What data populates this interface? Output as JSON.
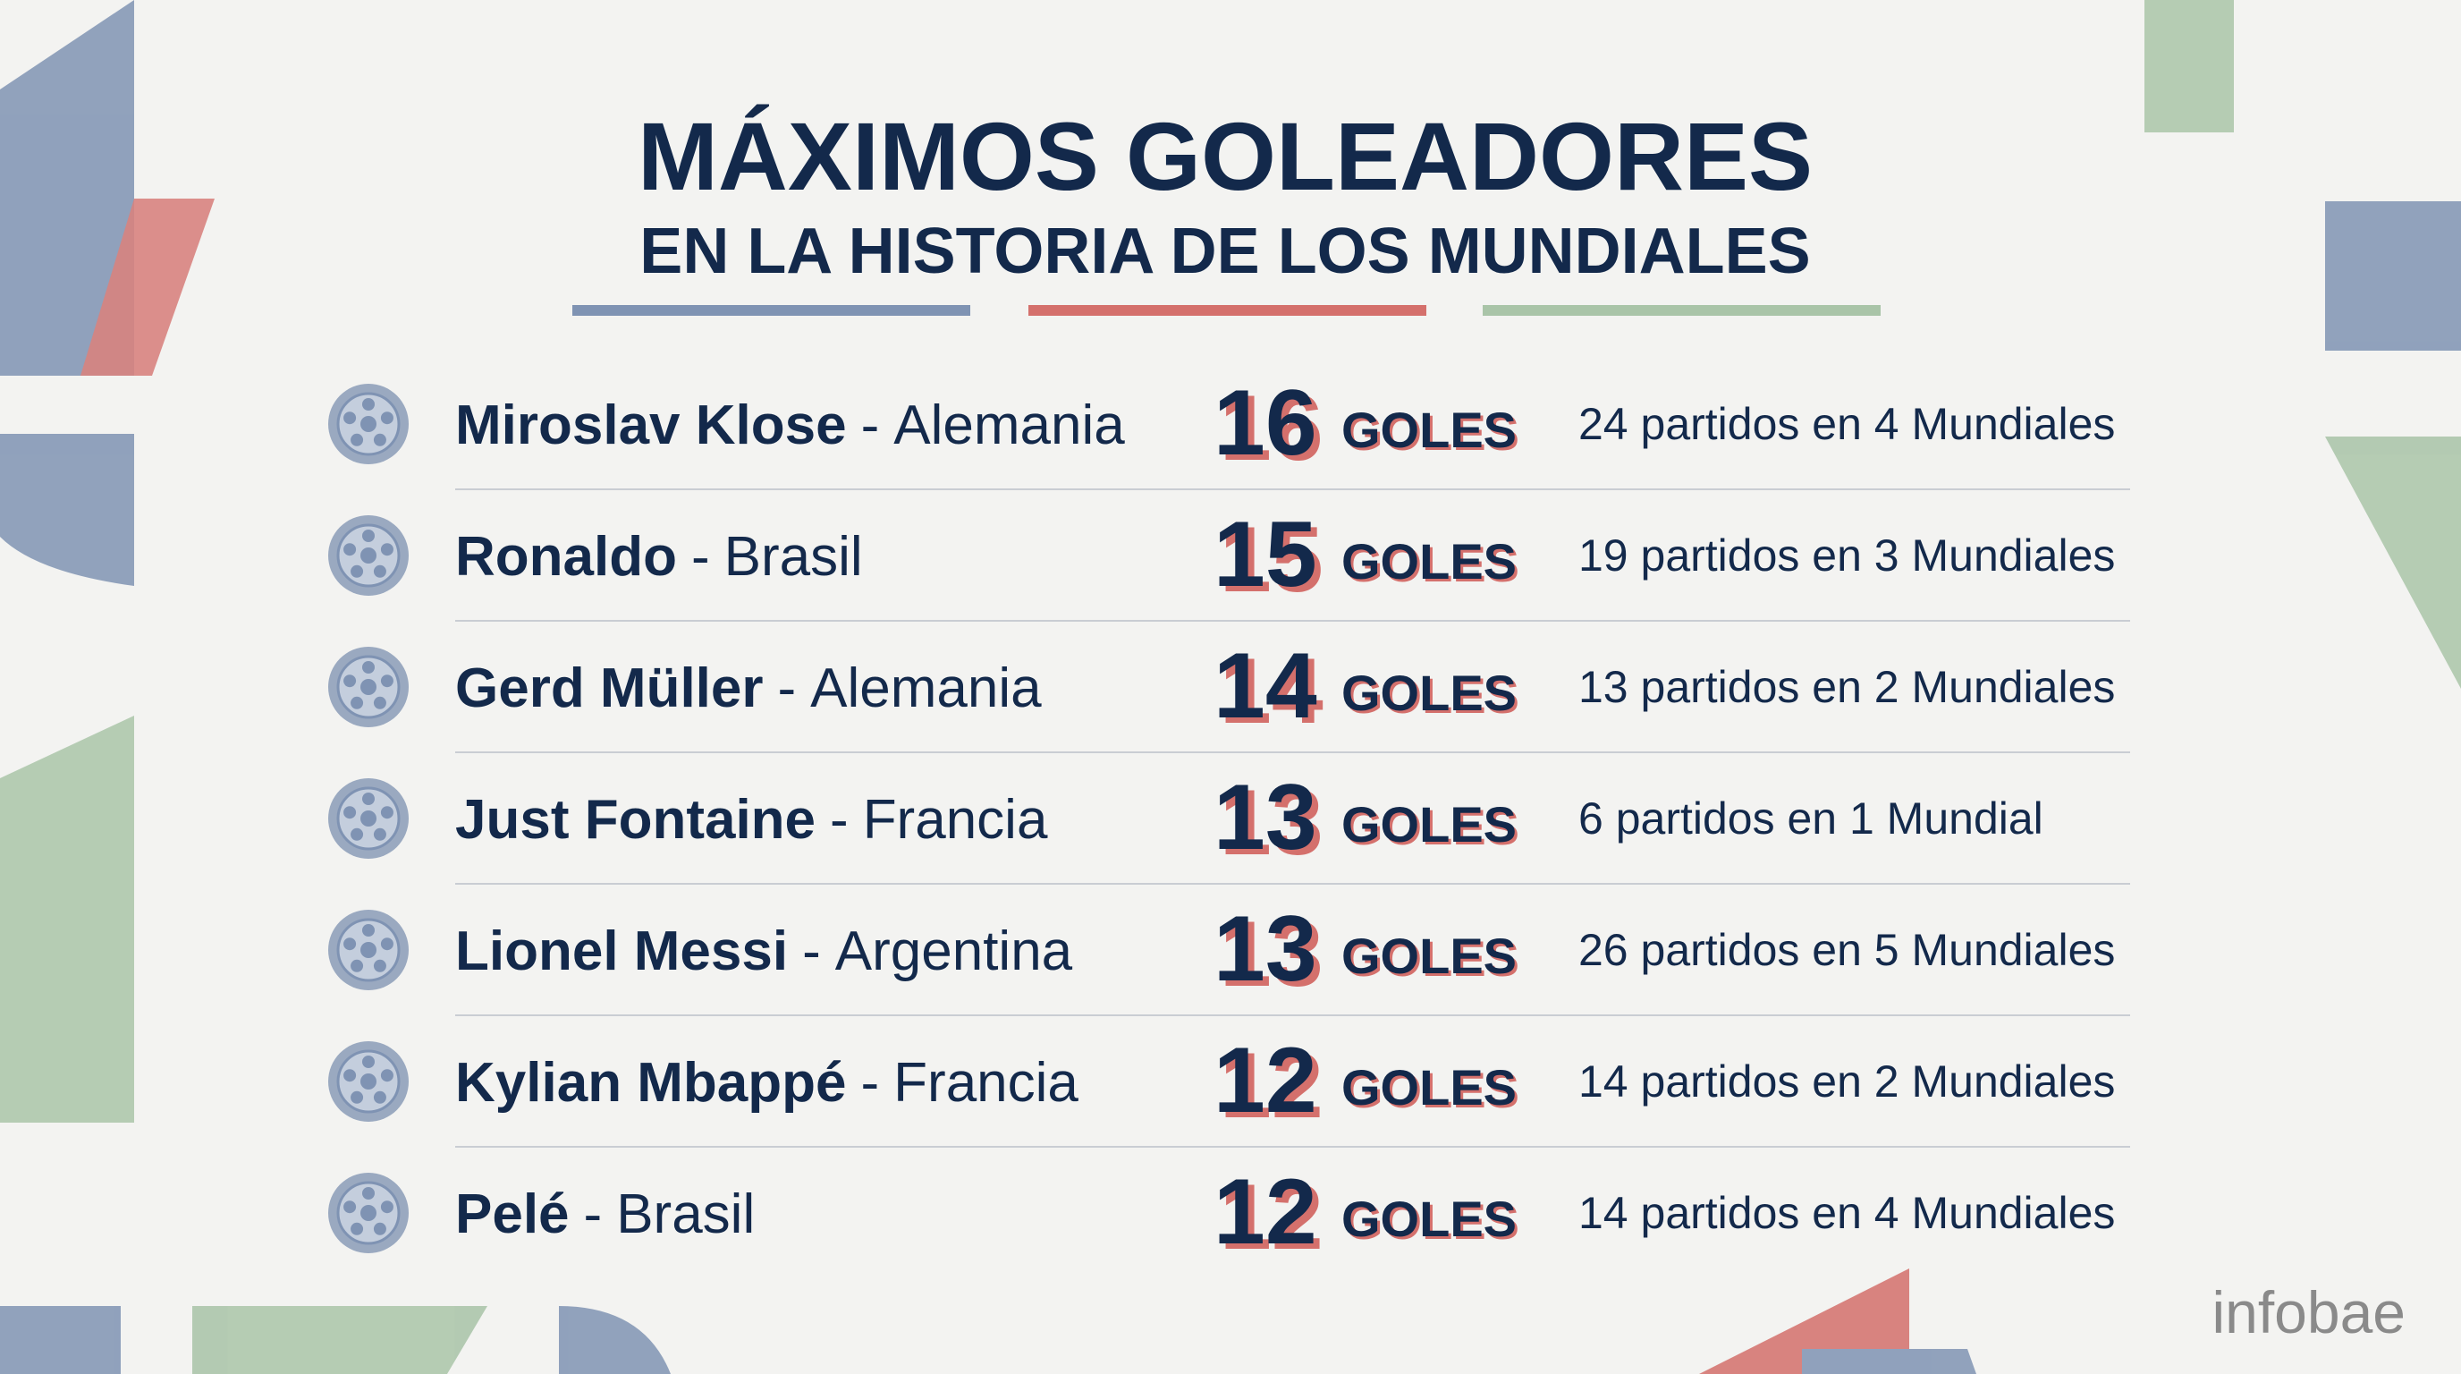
{
  "header": {
    "title": "MÁXIMOS GOLEADORES",
    "subtitle": "EN LA HISTORIA DE LOS MUNDIALES"
  },
  "separator": "-",
  "goals_unit": "GOLES",
  "rows": [
    {
      "name": "Miroslav Klose",
      "country": "Alemania",
      "goals": 16,
      "detail": "24 partidos en 4 Mundiales"
    },
    {
      "name": "Ronaldo",
      "country": "Brasil",
      "goals": 15,
      "detail": "19 partidos en 3 Mundiales"
    },
    {
      "name": "Gerd Müller",
      "country": "Alemania",
      "goals": 14,
      "detail": "13 partidos en 2 Mundiales"
    },
    {
      "name": "Just Fontaine",
      "country": "Francia",
      "goals": 13,
      "detail": "6 partidos en 1 Mundial"
    },
    {
      "name": "Lionel Messi",
      "country": "Argentina",
      "goals": 13,
      "detail": "26 partidos en 5 Mundiales"
    },
    {
      "name": "Kylian Mbappé",
      "country": "Francia",
      "goals": 12,
      "detail": "14 partidos en 2 Mundiales"
    },
    {
      "name": "Pelé",
      "country": "Brasil",
      "goals": 12,
      "detail": "14 partidos en 4 Mundiales"
    }
  ],
  "brand": "infobae"
}
